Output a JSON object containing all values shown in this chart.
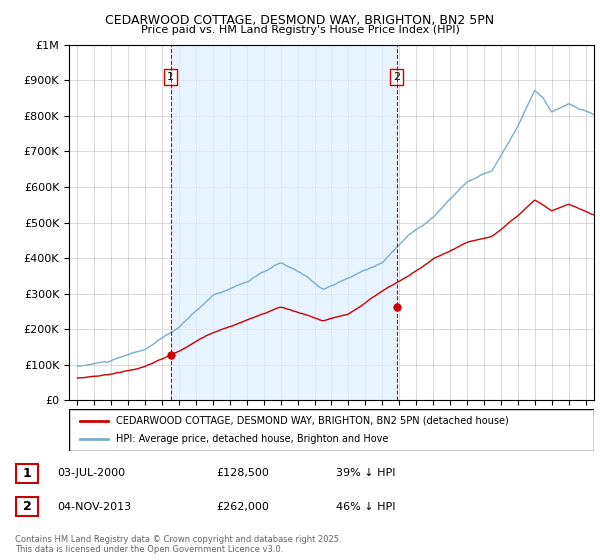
{
  "title1": "CEDARWOOD COTTAGE, DESMOND WAY, BRIGHTON, BN2 5PN",
  "title2": "Price paid vs. HM Land Registry's House Price Index (HPI)",
  "legend_line1": "CEDARWOOD COTTAGE, DESMOND WAY, BRIGHTON, BN2 5PN (detached house)",
  "legend_line2": "HPI: Average price, detached house, Brighton and Hove",
  "sale1_date": "03-JUL-2000",
  "sale1_price": "£128,500",
  "sale1_hpi": "39% ↓ HPI",
  "sale1_year": 2000.5,
  "sale1_value": 128500,
  "sale2_date": "04-NOV-2013",
  "sale2_price": "£262,000",
  "sale2_hpi": "46% ↓ HPI",
  "sale2_year": 2013.84,
  "sale2_value": 262000,
  "red_color": "#cc0000",
  "blue_color": "#7aadcf",
  "blue_fill": "#ddeeff",
  "vline_color": "#cc0000",
  "grid_color": "#cccccc",
  "background_color": "#ffffff",
  "copyright": "Contains HM Land Registry data © Crown copyright and database right 2025.\nThis data is licensed under the Open Government Licence v3.0.",
  "ylim": [
    0,
    1000000
  ],
  "xlim_start": 1994.5,
  "xlim_end": 2025.5
}
